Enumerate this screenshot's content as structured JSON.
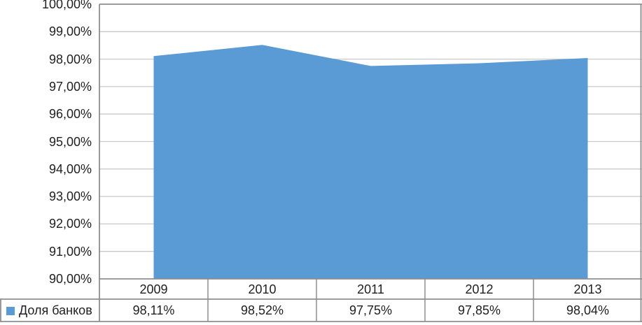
{
  "chart_data": {
    "type": "area",
    "title": "",
    "xlabel": "",
    "ylabel": "",
    "categories": [
      "2009",
      "2010",
      "2011",
      "2012",
      "2013"
    ],
    "series": [
      {
        "name": "Доля банков",
        "values": [
          98.11,
          98.52,
          97.75,
          97.85,
          98.04
        ],
        "color": "#5B9BD5"
      }
    ],
    "ylim": [
      90,
      100
    ],
    "ytick_step": 1,
    "ytick_labels": [
      "100,00%",
      "99,00%",
      "98,00%",
      "97,00%",
      "96,00%",
      "95,00%",
      "94,00%",
      "93,00%",
      "92,00%",
      "91,00%",
      "90,00%"
    ],
    "grid": true,
    "legend_position": "data-table-left",
    "data_table": {
      "row_label": "Доля банков",
      "values": [
        "98,11%",
        "98,52%",
        "97,75%",
        "97,85%",
        "98,04%"
      ]
    }
  },
  "colors": {
    "area_fill": "#5B9BD5",
    "gridline": "#C9C9C9",
    "border": "#8E8E8E",
    "text": "#1F1F1F",
    "background": "#FFFFFF"
  }
}
